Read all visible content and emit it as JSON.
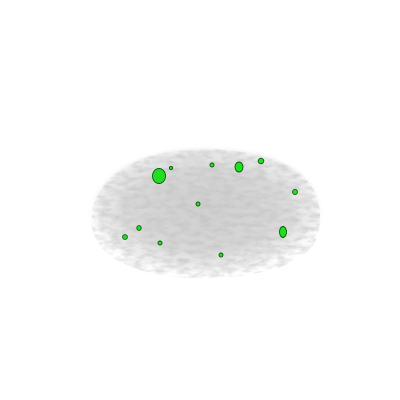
{
  "image": {
    "background_color": "#ffffff",
    "specimen": {
      "shape": "dome-ellipsoid",
      "tone": "light-gray-fibrous"
    },
    "marker_color": "#22dd22",
    "marker_outline": "#0a5a0a",
    "marker_count": 12
  }
}
